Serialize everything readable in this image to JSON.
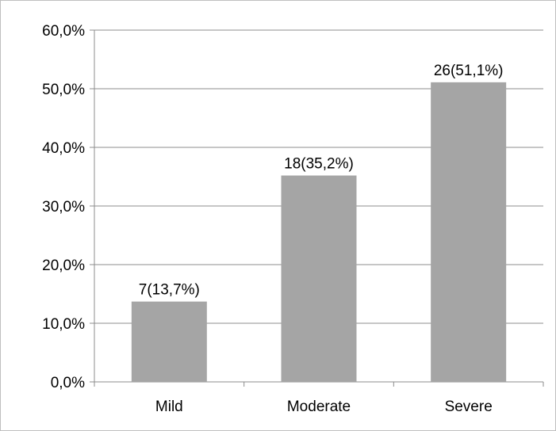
{
  "chart_data": {
    "type": "bar",
    "categories": [
      "Mild",
      "Moderate",
      "Severe"
    ],
    "values": [
      13.7,
      35.2,
      51.1
    ],
    "counts": [
      7,
      18,
      26
    ],
    "data_labels": [
      "7(13,7%)",
      "18(35,2%)",
      "26(51,1%)"
    ],
    "title": "",
    "xlabel": "",
    "ylabel": "",
    "ylim": [
      0,
      60
    ],
    "y_ticks": [
      "0,0%",
      "10,0%",
      "20,0%",
      "30,0%",
      "40,0%",
      "50,0%",
      "60,0%"
    ],
    "grid": true,
    "legend": "none",
    "bar_color": "#a5a5a5",
    "grid_color": "#8c8c8c",
    "axis_color": "#8c8c8c"
  }
}
